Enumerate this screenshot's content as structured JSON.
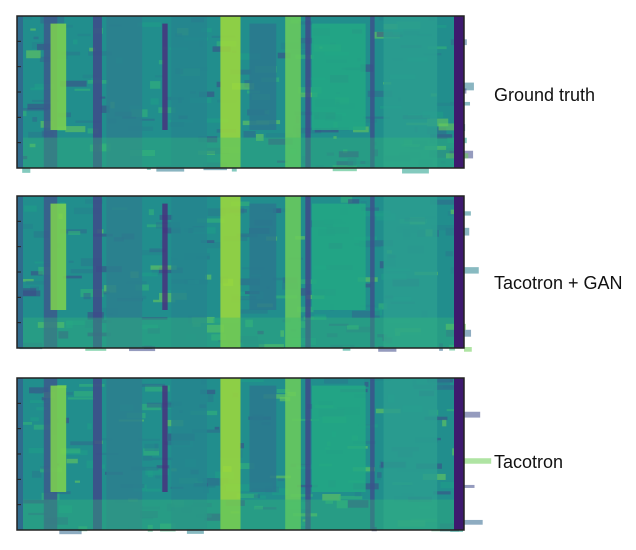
{
  "panels": [
    {
      "label": "Ground truth"
    },
    {
      "label": "Tacotron + GAN"
    },
    {
      "label": "Tacotron"
    }
  ]
}
